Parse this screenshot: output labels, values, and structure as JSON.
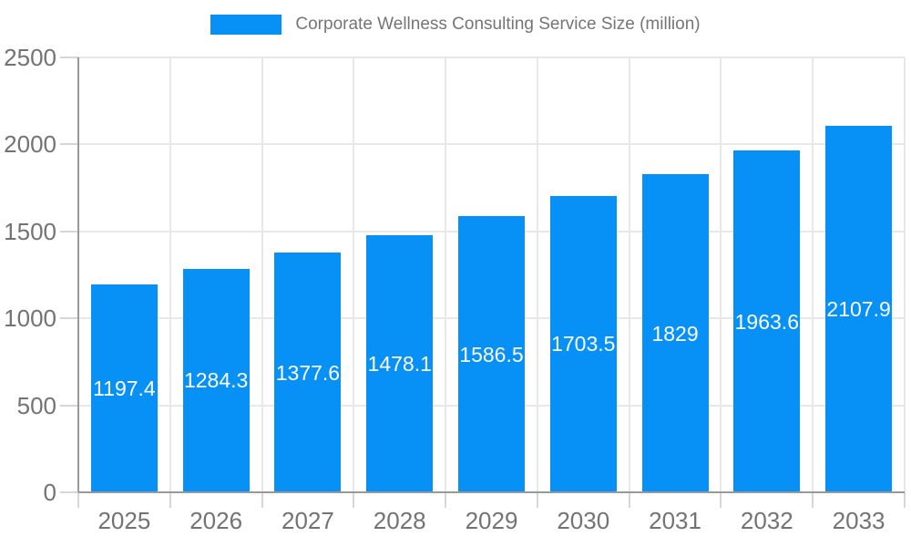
{
  "legend": {
    "label": "Corporate Wellness Consulting Service Size (million)",
    "swatch_color": "#0790f6"
  },
  "chart_data": {
    "type": "bar",
    "title": "Corporate Wellness Consulting Service Size (million)",
    "series_name": "Corporate Wellness Consulting Service Size (million)",
    "categories": [
      "2025",
      "2026",
      "2027",
      "2028",
      "2029",
      "2030",
      "2031",
      "2032",
      "2033"
    ],
    "values": [
      1197.4,
      1284.3,
      1377.6,
      1478.1,
      1586.5,
      1703.5,
      1829,
      1963.6,
      2107.9
    ],
    "value_labels": [
      "1197.4",
      "1284.3",
      "1377.6",
      "1478.1",
      "1586.5",
      "1703.5",
      "1829",
      "1963.6",
      "2107.9"
    ],
    "xlabel": "",
    "ylabel": "",
    "ylim": [
      0,
      2500
    ],
    "yticks": [
      0,
      500,
      1000,
      1500,
      2000,
      2500
    ],
    "ytick_labels": [
      "0",
      "500",
      "1000",
      "1500",
      "2000",
      "2500"
    ],
    "grid": true,
    "legend_position": "top",
    "bar_color": "#0790f6",
    "value_label_color": "#ffffff"
  },
  "colors": {
    "bar": "#0790f6",
    "axis_line": "#999999",
    "gridline": "#e8e8e8",
    "tick": "#d6d6d6",
    "tick_label": "#737373",
    "legend_text": "#757575",
    "background": "#ffffff"
  }
}
